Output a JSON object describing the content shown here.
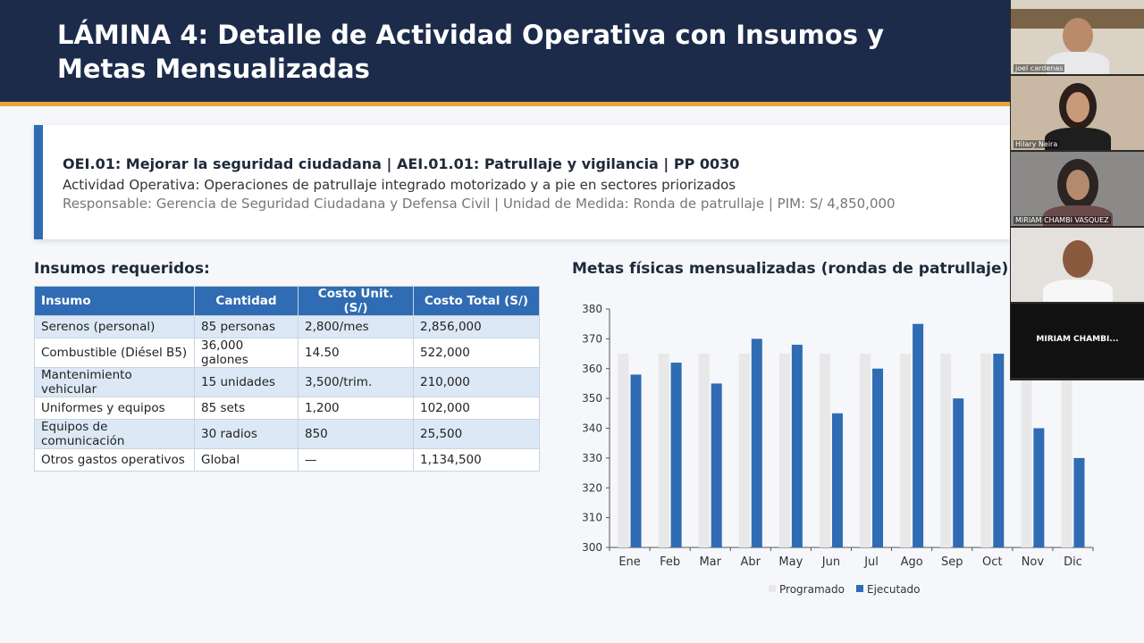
{
  "slide": {
    "title": "LÁMINA 4: Detalle de Actividad Operativa con Insumos y Metas Mensualizadas",
    "info": {
      "line1": "OEI.01: Mejorar la seguridad ciudadana  |  AEI.01.01: Patrullaje y vigilancia  |  PP 0030",
      "line2": "Actividad Operativa: Operaciones de patrullaje integrado motorizado y a pie en sectores priorizados",
      "line3": "Responsable: Gerencia de Seguridad Ciudadana y Defensa Civil  |  Unidad de Medida: Ronda de patrullaje  |  PIM: S/ 4,850,000"
    },
    "insumos_title": "Insumos requeridos:",
    "insumos_table": {
      "headers": [
        "Insumo",
        "Cantidad",
        "Costo Unit. (S/)",
        "Costo Total (S/)"
      ],
      "rows": [
        [
          "Serenos (personal)",
          "85 personas",
          "2,800/mes",
          "2,856,000"
        ],
        [
          "Combustible (Diésel B5)",
          "36,000 galones",
          "14.50",
          "522,000"
        ],
        [
          "Mantenimiento vehicular",
          "15 unidades",
          "3,500/trim.",
          "210,000"
        ],
        [
          "Uniformes y equipos",
          "85 sets",
          "1,200",
          "102,000"
        ],
        [
          "Equipos de comunicación",
          "30 radios",
          "850",
          "25,500"
        ],
        [
          "Otros gastos operativos",
          "Global",
          "—",
          "1,134,500"
        ]
      ]
    },
    "metas_title": "Metas físicas mensualizadas (rondas de patrullaje):"
  },
  "chart_data": {
    "type": "bar",
    "categories": [
      "Ene",
      "Feb",
      "Mar",
      "Abr",
      "May",
      "Jun",
      "Jul",
      "Ago",
      "Sep",
      "Oct",
      "Nov",
      "Dic"
    ],
    "series": [
      {
        "name": "Programado",
        "values": [
          365,
          365,
          365,
          365,
          365,
          365,
          365,
          365,
          365,
          365,
          365,
          365
        ],
        "color": "#e8e8e8"
      },
      {
        "name": "Ejecutado",
        "values": [
          358,
          362,
          355,
          370,
          368,
          345,
          360,
          375,
          350,
          365,
          340,
          330
        ],
        "color": "#2f6cb3"
      }
    ],
    "ylim": [
      300,
      380
    ],
    "yticks": [
      300,
      310,
      320,
      330,
      340,
      350,
      360,
      370,
      380
    ],
    "legend": "bottom",
    "grid": false
  },
  "participants": [
    {
      "name": "joel cardenas"
    },
    {
      "name": "Hilary Neira"
    },
    {
      "name": "MIRIAM CHAMBI VASQUEZ"
    },
    {
      "name": ""
    },
    {
      "name": "MIRIAM  CHAMBI..."
    }
  ]
}
